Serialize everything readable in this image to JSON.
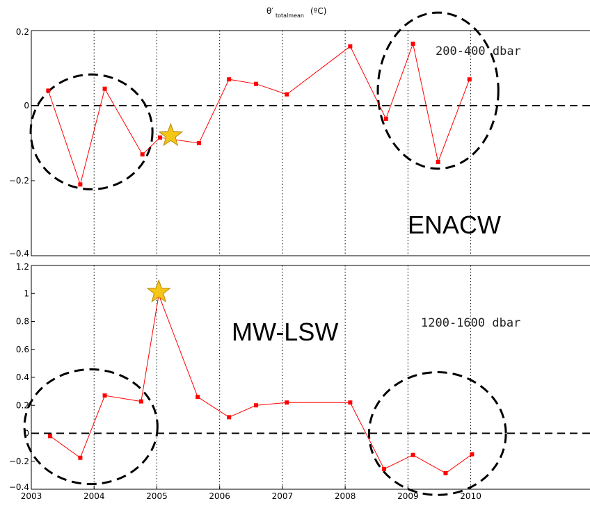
{
  "title": {
    "main": "θ′",
    "sub": "totalmean",
    "unit": "(ºC)"
  },
  "colors": {
    "series": "#ff0000",
    "star_fill": "#f5c518",
    "star_edge": "#b8860b",
    "zero_line": "#000000",
    "grid": "#000000",
    "circle": "#000000"
  },
  "star_icon": "star-icon",
  "chart_data": [
    {
      "type": "line",
      "panel": "top",
      "depth_label": "200-400 dbar",
      "water_mass_label": "ENACW",
      "xlim": [
        2003,
        2011.9
      ],
      "ylim": [
        -0.4,
        0.2
      ],
      "xticks": [],
      "yticks": [
        -0.4,
        -0.2,
        0,
        0.2
      ],
      "ytick_labels": [
        "−0.4",
        "−0.2",
        "0",
        "0.2"
      ],
      "grid_x": [
        2004,
        2005,
        2006,
        2007,
        2008,
        2009,
        2010
      ],
      "zero_line": 0,
      "series": [
        {
          "x": [
            2003.27,
            2003.78,
            2004.17,
            2004.77,
            2005.05,
            2005.67,
            2006.15,
            2006.58,
            2007.07,
            2008.08,
            2008.65,
            2009.08,
            2009.48,
            2009.98
          ],
          "y": [
            0.04,
            -0.21,
            0.045,
            -0.13,
            -0.085,
            -0.1,
            0.07,
            0.058,
            0.03,
            0.158,
            -0.035,
            0.165,
            -0.15,
            0.07
          ]
        }
      ],
      "star": {
        "x": 2005.22,
        "y": -0.08
      },
      "highlight_circles": [
        {
          "x_center": 2003.96,
          "y_center": -0.07,
          "x_radius": 0.97,
          "y_radius": 0.153
        },
        {
          "x_center": 2009.48,
          "y_center": 0.04,
          "x_radius": 0.96,
          "y_radius": 0.208
        }
      ]
    },
    {
      "type": "line",
      "panel": "bottom",
      "depth_label": "1200-1600 dbar",
      "water_mass_label": "MW-LSW",
      "xlim": [
        2003,
        2011.9
      ],
      "ylim": [
        -0.4,
        1.2
      ],
      "xticks": [
        2003,
        2004,
        2005,
        2006,
        2007,
        2008,
        2009,
        2010
      ],
      "xtick_labels": [
        "2003",
        "2004",
        "2005",
        "2006",
        "2007",
        "2008",
        "2009",
        "2010"
      ],
      "yticks": [
        -0.4,
        -0.2,
        0,
        0.2,
        0.4,
        0.6,
        0.8,
        1,
        1.2
      ],
      "ytick_labels": [
        "−0.4",
        "−0.2",
        "0",
        "0.2",
        "0.4",
        "0.6",
        "0.8",
        "1",
        "1.2"
      ],
      "grid_x": [
        2004,
        2005,
        2006,
        2007,
        2008,
        2009,
        2010
      ],
      "zero_line": 0,
      "series": [
        {
          "x": [
            2003.3,
            2003.78,
            2004.17,
            2004.75,
            2005.03,
            2005.65,
            2006.15,
            2006.58,
            2007.07,
            2008.08,
            2008.62,
            2009.08,
            2009.6,
            2010.02
          ],
          "y": [
            -0.02,
            -0.175,
            0.27,
            0.228,
            0.99,
            0.26,
            0.115,
            0.2,
            0.22,
            0.22,
            -0.255,
            -0.155,
            -0.285,
            -0.15
          ]
        }
      ],
      "star": {
        "x": 2005.03,
        "y": 1.01
      },
      "highlight_circles": [
        {
          "x_center": 2003.95,
          "y_center": 0.047,
          "x_radius": 1.06,
          "y_radius": 0.41
        },
        {
          "x_center": 2009.47,
          "y_center": -0.002,
          "x_radius": 1.09,
          "y_radius": 0.439
        }
      ]
    }
  ]
}
